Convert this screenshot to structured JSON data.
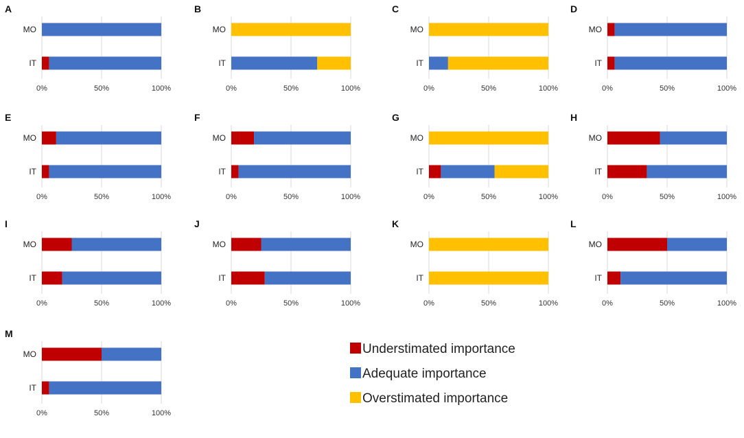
{
  "colors": {
    "understimated": "#c00000",
    "adequate": "#4472c4",
    "overestimated": "#ffc000"
  },
  "legend": [
    {
      "key": "understimated",
      "label": "Understimated importance"
    },
    {
      "key": "adequate",
      "label": "Adequate importance"
    },
    {
      "key": "overestimated",
      "label": "Overstimated importance"
    }
  ],
  "chart_data": [
    {
      "type": "bar",
      "orientation": "horizontal",
      "stacked": true,
      "title": "A",
      "categories": [
        "MO",
        "IT"
      ],
      "xticks": [
        "0%",
        "50%",
        "100%"
      ],
      "xlim": [
        0,
        100
      ],
      "series": [
        {
          "name": "Understimated importance",
          "values": [
            0,
            6
          ]
        },
        {
          "name": "Adequate importance",
          "values": [
            100,
            94
          ]
        },
        {
          "name": "Overstimated importance",
          "values": [
            0,
            0
          ]
        }
      ]
    },
    {
      "type": "bar",
      "orientation": "horizontal",
      "stacked": true,
      "title": "B",
      "categories": [
        "MO",
        "IT"
      ],
      "xticks": [
        "0%",
        "50%",
        "100%"
      ],
      "xlim": [
        0,
        100
      ],
      "series": [
        {
          "name": "Understimated importance",
          "values": [
            0,
            0
          ]
        },
        {
          "name": "Adequate importance",
          "values": [
            0,
            72
          ]
        },
        {
          "name": "Overstimated importance",
          "values": [
            100,
            28
          ]
        }
      ]
    },
    {
      "type": "bar",
      "orientation": "horizontal",
      "stacked": true,
      "title": "C",
      "categories": [
        "MO",
        "IT"
      ],
      "xticks": [
        "0%",
        "50%",
        "100%"
      ],
      "xlim": [
        0,
        100
      ],
      "series": [
        {
          "name": "Understimated importance",
          "values": [
            0,
            0
          ]
        },
        {
          "name": "Adequate importance",
          "values": [
            0,
            16
          ]
        },
        {
          "name": "Overstimated importance",
          "values": [
            100,
            84
          ]
        }
      ]
    },
    {
      "type": "bar",
      "orientation": "horizontal",
      "stacked": true,
      "title": "D",
      "categories": [
        "MO",
        "IT"
      ],
      "xticks": [
        "0%",
        "50%",
        "100%"
      ],
      "xlim": [
        0,
        100
      ],
      "series": [
        {
          "name": "Understimated importance",
          "values": [
            6,
            6
          ]
        },
        {
          "name": "Adequate importance",
          "values": [
            94,
            94
          ]
        },
        {
          "name": "Overstimated importance",
          "values": [
            0,
            0
          ]
        }
      ]
    },
    {
      "type": "bar",
      "orientation": "horizontal",
      "stacked": true,
      "title": "E",
      "categories": [
        "MO",
        "IT"
      ],
      "xticks": [
        "0%",
        "50%",
        "100%"
      ],
      "xlim": [
        0,
        100
      ],
      "series": [
        {
          "name": "Understimated importance",
          "values": [
            12,
            6
          ]
        },
        {
          "name": "Adequate importance",
          "values": [
            88,
            94
          ]
        },
        {
          "name": "Overstimated importance",
          "values": [
            0,
            0
          ]
        }
      ]
    },
    {
      "type": "bar",
      "orientation": "horizontal",
      "stacked": true,
      "title": "F",
      "categories": [
        "MO",
        "IT"
      ],
      "xticks": [
        "0%",
        "50%",
        "100%"
      ],
      "xlim": [
        0,
        100
      ],
      "series": [
        {
          "name": "Understimated importance",
          "values": [
            19,
            6
          ]
        },
        {
          "name": "Adequate importance",
          "values": [
            81,
            94
          ]
        },
        {
          "name": "Overstimated importance",
          "values": [
            0,
            0
          ]
        }
      ]
    },
    {
      "type": "bar",
      "orientation": "horizontal",
      "stacked": true,
      "title": "G",
      "categories": [
        "MO",
        "IT"
      ],
      "xticks": [
        "0%",
        "50%",
        "100%"
      ],
      "xlim": [
        0,
        100
      ],
      "series": [
        {
          "name": "Understimated importance",
          "values": [
            0,
            10
          ]
        },
        {
          "name": "Adequate importance",
          "values": [
            0,
            45
          ]
        },
        {
          "name": "Overstimated importance",
          "values": [
            100,
            45
          ]
        }
      ]
    },
    {
      "type": "bar",
      "orientation": "horizontal",
      "stacked": true,
      "title": "H",
      "categories": [
        "MO",
        "IT"
      ],
      "xticks": [
        "0%",
        "50%",
        "100%"
      ],
      "xlim": [
        0,
        100
      ],
      "series": [
        {
          "name": "Understimated importance",
          "values": [
            44,
            33
          ]
        },
        {
          "name": "Adequate importance",
          "values": [
            56,
            67
          ]
        },
        {
          "name": "Overstimated importance",
          "values": [
            0,
            0
          ]
        }
      ]
    },
    {
      "type": "bar",
      "orientation": "horizontal",
      "stacked": true,
      "title": "I",
      "categories": [
        "MO",
        "IT"
      ],
      "xticks": [
        "0%",
        "50%",
        "100%"
      ],
      "xlim": [
        0,
        100
      ],
      "series": [
        {
          "name": "Understimated importance",
          "values": [
            25,
            17
          ]
        },
        {
          "name": "Adequate importance",
          "values": [
            75,
            83
          ]
        },
        {
          "name": "Overstimated importance",
          "values": [
            0,
            0
          ]
        }
      ]
    },
    {
      "type": "bar",
      "orientation": "horizontal",
      "stacked": true,
      "title": "J",
      "categories": [
        "MO",
        "IT"
      ],
      "xticks": [
        "0%",
        "50%",
        "100%"
      ],
      "xlim": [
        0,
        100
      ],
      "series": [
        {
          "name": "Understimated importance",
          "values": [
            25,
            28
          ]
        },
        {
          "name": "Adequate importance",
          "values": [
            75,
            72
          ]
        },
        {
          "name": "Overstimated importance",
          "values": [
            0,
            0
          ]
        }
      ]
    },
    {
      "type": "bar",
      "orientation": "horizontal",
      "stacked": true,
      "title": "K",
      "categories": [
        "MO",
        "IT"
      ],
      "xticks": [
        "0%",
        "50%",
        "100%"
      ],
      "xlim": [
        0,
        100
      ],
      "series": [
        {
          "name": "Understimated importance",
          "values": [
            0,
            0
          ]
        },
        {
          "name": "Adequate importance",
          "values": [
            0,
            0
          ]
        },
        {
          "name": "Overstimated importance",
          "values": [
            100,
            100
          ]
        }
      ]
    },
    {
      "type": "bar",
      "orientation": "horizontal",
      "stacked": true,
      "title": "L",
      "categories": [
        "MO",
        "IT"
      ],
      "xticks": [
        "0%",
        "50%",
        "100%"
      ],
      "xlim": [
        0,
        100
      ],
      "series": [
        {
          "name": "Understimated importance",
          "values": [
            50,
            11
          ]
        },
        {
          "name": "Adequate importance",
          "values": [
            50,
            89
          ]
        },
        {
          "name": "Overstimated importance",
          "values": [
            0,
            0
          ]
        }
      ]
    },
    {
      "type": "bar",
      "orientation": "horizontal",
      "stacked": true,
      "title": "M",
      "categories": [
        "MO",
        "IT"
      ],
      "xticks": [
        "0%",
        "50%",
        "100%"
      ],
      "xlim": [
        0,
        100
      ],
      "series": [
        {
          "name": "Understimated importance",
          "values": [
            50,
            6
          ]
        },
        {
          "name": "Adequate importance",
          "values": [
            50,
            94
          ]
        },
        {
          "name": "Overstimated importance",
          "values": [
            0,
            0
          ]
        }
      ]
    }
  ]
}
